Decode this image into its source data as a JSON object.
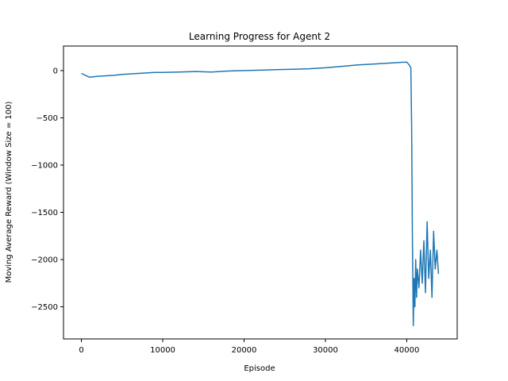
{
  "chart_data": {
    "type": "line",
    "title": "Learning Progress for Agent 2",
    "xlabel": "Episode",
    "ylabel": "Moving Average Reward (Window Size = 100)",
    "xlim": [
      -2200,
      46200
    ],
    "ylim": [
      -2840,
      260
    ],
    "xticks": [
      0,
      10000,
      20000,
      30000,
      40000
    ],
    "xtick_labels": [
      "0",
      "10000",
      "20000",
      "30000",
      "40000"
    ],
    "yticks": [
      0,
      -500,
      -1000,
      -1500,
      -2000,
      -2500
    ],
    "ytick_labels": [
      "0",
      "−500",
      "−1000",
      "−1500",
      "−2000",
      "−2500"
    ],
    "grid": false,
    "legend": "none",
    "series": [
      {
        "color": "#1f77b4",
        "x": [
          0,
          1000,
          2000,
          3000,
          4000,
          5000,
          6000,
          7000,
          8000,
          9000,
          10000,
          12000,
          14000,
          16000,
          18000,
          20000,
          22000,
          24000,
          26000,
          28000,
          30000,
          32000,
          34000,
          36000,
          38000,
          40000,
          40300,
          40500,
          40600,
          40700,
          40800,
          40900,
          41000,
          41100,
          41200,
          41300,
          41500,
          41700,
          41900,
          42100,
          42300,
          42500,
          42700,
          42900,
          43100,
          43300,
          43500,
          43700,
          43900
        ],
        "y": [
          -30,
          -70,
          -60,
          -55,
          -50,
          -40,
          -35,
          -30,
          -25,
          -20,
          -20,
          -15,
          -10,
          -15,
          -5,
          0,
          5,
          10,
          15,
          20,
          30,
          45,
          60,
          70,
          80,
          90,
          60,
          30,
          -600,
          -1800,
          -2700,
          -2200,
          -2500,
          -2000,
          -2400,
          -2100,
          -2300,
          -1900,
          -2250,
          -1800,
          -2350,
          -1600,
          -2200,
          -1900,
          -2400,
          -1700,
          -2100,
          -1900,
          -2150
        ]
      }
    ]
  }
}
